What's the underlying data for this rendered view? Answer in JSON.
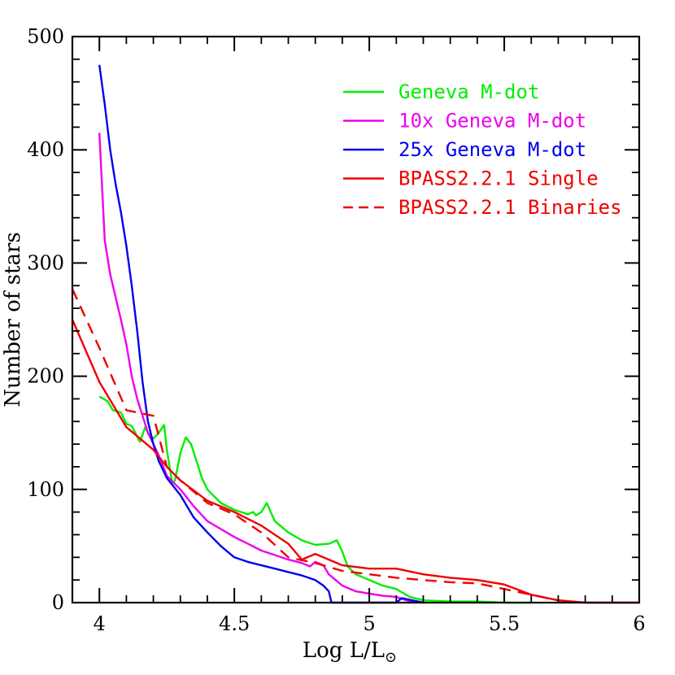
{
  "chart_data": {
    "type": "line",
    "xlabel": "Log L/L",
    "xlabel_subscript": "⊙",
    "ylabel": "Number of stars",
    "xlim": [
      3.9,
      6.0
    ],
    "ylim": [
      0,
      500
    ],
    "x_ticks": [
      "4",
      "4.5",
      "5",
      "5.5",
      "6"
    ],
    "x_tick_values": [
      4.0,
      4.5,
      5.0,
      5.5,
      6.0
    ],
    "y_ticks": [
      "0",
      "100",
      "200",
      "300",
      "400",
      "500"
    ],
    "y_tick_values": [
      0,
      100,
      200,
      300,
      400,
      500
    ],
    "legend_position": "top-right",
    "series": [
      {
        "name": "Geneva M-dot",
        "color": "#00ee00",
        "dash": "solid",
        "x": [
          4.0,
          4.03,
          4.05,
          4.08,
          4.1,
          4.12,
          4.15,
          4.17,
          4.18,
          4.2,
          4.22,
          4.24,
          4.25,
          4.27,
          4.28,
          4.3,
          4.32,
          4.34,
          4.36,
          4.38,
          4.4,
          4.45,
          4.5,
          4.55,
          4.57,
          4.58,
          4.6,
          4.62,
          4.65,
          4.7,
          4.75,
          4.8,
          4.85,
          4.88,
          4.9,
          4.92,
          4.95,
          5.0,
          5.05,
          5.1,
          5.15,
          5.2,
          5.3,
          5.4,
          5.5,
          5.6
        ],
        "y": [
          182,
          178,
          170,
          168,
          158,
          156,
          142,
          155,
          150,
          145,
          150,
          157,
          135,
          105,
          108,
          132,
          146,
          140,
          125,
          110,
          100,
          88,
          82,
          78,
          80,
          77,
          80,
          88,
          72,
          62,
          55,
          51,
          52,
          55,
          45,
          32,
          25,
          20,
          15,
          12,
          5,
          2,
          1,
          1,
          0,
          0
        ]
      },
      {
        "name": "10x Geneva M-dot",
        "color": "#ee00ee",
        "dash": "solid",
        "x": [
          4.0,
          4.02,
          4.04,
          4.06,
          4.08,
          4.1,
          4.12,
          4.14,
          4.16,
          4.18,
          4.2,
          4.22,
          4.25,
          4.3,
          4.35,
          4.4,
          4.45,
          4.5,
          4.55,
          4.6,
          4.65,
          4.7,
          4.75,
          4.78,
          4.8,
          4.83,
          4.85,
          4.9,
          4.95,
          5.0,
          5.05,
          5.1,
          5.15,
          5.2
        ],
        "y": [
          415,
          320,
          290,
          270,
          250,
          228,
          200,
          180,
          165,
          150,
          140,
          130,
          112,
          100,
          85,
          72,
          65,
          58,
          52,
          46,
          42,
          38,
          35,
          32,
          36,
          33,
          25,
          15,
          10,
          8,
          6,
          5,
          1,
          0
        ]
      },
      {
        "name": "25x Geneva M-dot",
        "color": "#0000ee",
        "dash": "solid",
        "x": [
          4.0,
          4.02,
          4.04,
          4.06,
          4.08,
          4.1,
          4.12,
          4.14,
          4.16,
          4.18,
          4.2,
          4.22,
          4.25,
          4.3,
          4.35,
          4.4,
          4.45,
          4.5,
          4.55,
          4.6,
          4.65,
          4.7,
          4.75,
          4.8,
          4.83,
          4.85,
          4.86,
          5.1,
          5.12,
          5.2
        ],
        "y": [
          475,
          440,
          400,
          370,
          345,
          315,
          280,
          240,
          195,
          160,
          140,
          125,
          110,
          95,
          75,
          62,
          50,
          40,
          36,
          33,
          30,
          27,
          24,
          20,
          15,
          10,
          0,
          0,
          4,
          0
        ]
      },
      {
        "name": "BPASS2.2.1 Single",
        "color": "#ee0000",
        "dash": "solid",
        "x": [
          3.9,
          4.0,
          4.1,
          4.2,
          4.25,
          4.3,
          4.4,
          4.5,
          4.6,
          4.7,
          4.75,
          4.8,
          4.9,
          5.0,
          5.1,
          5.2,
          5.3,
          5.4,
          5.5,
          5.6,
          5.7,
          5.8,
          5.9,
          6.0
        ],
        "y": [
          250,
          195,
          155,
          135,
          120,
          108,
          90,
          80,
          68,
          52,
          38,
          43,
          33,
          30,
          30,
          25,
          22,
          20,
          16,
          7,
          2,
          0,
          0,
          0
        ]
      },
      {
        "name": "BPASS2.2.1 Binaries",
        "color": "#ee0000",
        "dash": "dashed",
        "x": [
          3.9,
          4.0,
          4.1,
          4.2,
          4.25,
          4.3,
          4.4,
          4.5,
          4.6,
          4.7,
          4.8,
          4.9,
          5.0,
          5.1,
          5.2,
          5.3,
          5.4,
          5.5,
          5.6,
          5.7,
          5.8
        ],
        "y": [
          277,
          225,
          170,
          165,
          120,
          108,
          88,
          78,
          62,
          40,
          35,
          28,
          25,
          22,
          20,
          18,
          17,
          12,
          7,
          2,
          0
        ]
      }
    ]
  }
}
